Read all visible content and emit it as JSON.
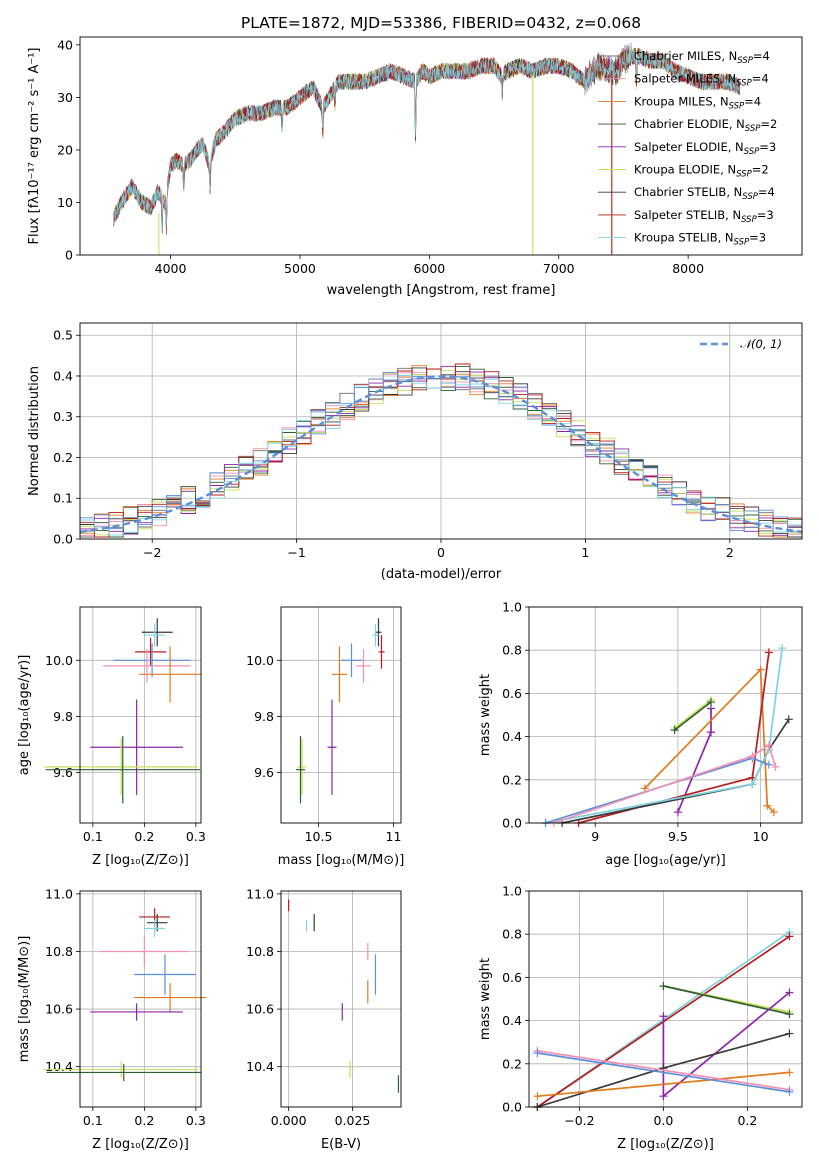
{
  "chart_data": [
    {
      "id": "spectrum",
      "type": "line",
      "title": "PLATE=1872, MJD=53386, FIBERID=0432, z=0.068",
      "xlabel": "wavelength [Angstrom, rest frame]",
      "ylabel": "Flux [fλ10⁻¹⁷ erg cm⁻² s⁻¹ A⁻¹]",
      "xlim": [
        3300,
        8880
      ],
      "ylim": [
        0,
        41.5
      ],
      "xticks": [
        4000,
        5000,
        6000,
        7000,
        8000
      ],
      "yticks": [
        0,
        10,
        20,
        30,
        40
      ],
      "grid": false,
      "legend_position": "right",
      "spectrum_profile": {
        "x": [
          3560,
          3620,
          3700,
          3780,
          3850,
          3900,
          3960,
          4000,
          4050,
          4100,
          4150,
          4200,
          4250,
          4300,
          4350,
          4400,
          4500,
          4600,
          4700,
          4800,
          4900,
          5000,
          5100,
          5175,
          5250,
          5300,
          5400,
          5500,
          5600,
          5700,
          5800,
          5890,
          5950,
          6000,
          6100,
          6200,
          6300,
          6400,
          6500,
          6560,
          6600,
          6700,
          6800,
          6900,
          7000,
          7100,
          7200,
          7300,
          7400,
          7450,
          7500,
          7600,
          7700,
          7800,
          7900,
          8000,
          8100,
          8200,
          8300,
          8400
        ],
        "y": [
          7,
          10,
          13,
          10,
          9,
          12,
          10,
          17,
          18,
          17,
          18,
          20,
          21,
          17,
          22,
          23,
          26,
          27,
          27,
          28,
          28,
          30,
          32,
          28,
          31,
          33,
          33,
          33,
          34,
          35,
          34,
          33,
          35,
          34,
          35,
          35,
          35,
          36,
          36,
          34,
          35,
          36,
          35,
          36,
          36,
          35,
          33,
          36,
          35,
          35,
          37,
          38,
          37,
          37,
          35,
          34,
          33,
          33,
          33,
          32
        ]
      },
      "series": [
        {
          "name": "Chabrier MILES, NSSP=4",
          "color": "#6b6b6b"
        },
        {
          "name": "Salpeter MILES, NSSP=4",
          "color": "#f48fb1"
        },
        {
          "name": "Kroupa MILES, NSSP=4",
          "color": "#e07b1f"
        },
        {
          "name": "Chabrier ELODIE, NSSP=2",
          "color": "#2e5f34"
        },
        {
          "name": "Salpeter ELODIE, NSSP=3",
          "color": "#8e24aa"
        },
        {
          "name": "Kroupa ELODIE, NSSP=2",
          "color": "#c6e05a"
        },
        {
          "name": "Chabrier STELIB, NSSP=4",
          "color": "#3a3a3a"
        },
        {
          "name": "Salpeter STELIB, NSSP=3",
          "color": "#b71c1c"
        },
        {
          "name": "Kroupa STELIB, NSSP=3",
          "color": "#7fd3e0"
        }
      ],
      "legend": [
        {
          "base": "Chabrier MILES, N",
          "sub": "SSP",
          "post": "=4",
          "color": "#6b6b6b"
        },
        {
          "base": "Salpeter MILES, N",
          "sub": "SSP",
          "post": "=4",
          "color": "#f48fb1"
        },
        {
          "base": "Kroupa MILES, N",
          "sub": "SSP",
          "post": "=4",
          "color": "#e07b1f"
        },
        {
          "base": "Chabrier ELODIE, N",
          "sub": "SSP",
          "post": "=2",
          "color": "#2e5f34"
        },
        {
          "base": "Salpeter ELODIE, N",
          "sub": "SSP",
          "post": "=3",
          "color": "#8e24aa"
        },
        {
          "base": "Kroupa ELODIE, N",
          "sub": "SSP",
          "post": "=2",
          "color": "#c6e05a"
        },
        {
          "base": "Chabrier STELIB, N",
          "sub": "SSP",
          "post": "=4",
          "color": "#3a3a3a"
        },
        {
          "base": "Salpeter STELIB, N",
          "sub": "SSP",
          "post": "=3",
          "color": "#b71c1c"
        },
        {
          "base": "Kroupa STELIB, N",
          "sub": "SSP",
          "post": "=3",
          "color": "#7fd3e0"
        }
      ]
    },
    {
      "id": "residuals",
      "type": "histogram",
      "xlabel": "(data-model)/error",
      "ylabel": "Normed distribution",
      "xlim": [
        -2.5,
        2.5
      ],
      "ylim": [
        0,
        0.53
      ],
      "xticks": [
        -2,
        -1,
        0,
        1,
        2
      ],
      "yticks": [
        0.0,
        0.1,
        0.2,
        0.3,
        0.4,
        0.5
      ],
      "grid": true,
      "bin_width": 0.1,
      "reference_curve": {
        "name": "𝒩(0, 1)",
        "label_base": "𝒩(0, 1)",
        "color": "#5b8fd9",
        "style": "dashed"
      }
    },
    {
      "id": "age_vs_Z",
      "type": "scatter",
      "xlabel": "Z [log₁₀(Z/Z⊙)]",
      "ylabel": "age  [log₁₀(age/yr)]",
      "xlim": [
        0.075,
        0.31
      ],
      "ylim": [
        9.42,
        10.19
      ],
      "xticks": [
        0.1,
        0.2,
        0.3
      ],
      "yticks": [
        9.6,
        9.8,
        10.0
      ],
      "grid": true,
      "points": [
        {
          "x": 0.225,
          "y": 10.1,
          "xerr": 0.03,
          "yerr": 0.05,
          "color": "#3a3a3a"
        },
        {
          "x": 0.22,
          "y": 10.09,
          "xerr": 0.02,
          "yerr": 0.04,
          "color": "#7fd3e0"
        },
        {
          "x": 0.212,
          "y": 10.03,
          "xerr": 0.03,
          "yerr": 0.05,
          "color": "#b71c1c"
        },
        {
          "x": 0.215,
          "y": 10.0,
          "xerr": 0.075,
          "yerr": 0.06,
          "color": "#5b8fd9"
        },
        {
          "x": 0.205,
          "y": 9.98,
          "xerr": 0.085,
          "yerr": 0.06,
          "color": "#f48fb1"
        },
        {
          "x": 0.25,
          "y": 9.95,
          "xerr": 0.06,
          "yerr": 0.1,
          "color": "#e07b1f"
        },
        {
          "x": 0.185,
          "y": 9.69,
          "xerr": 0.09,
          "yerr": 0.17,
          "color": "#8e24aa"
        },
        {
          "x": 0.155,
          "y": 9.62,
          "xerr": 0.15,
          "yerr": 0.1,
          "color": "#c6e05a"
        },
        {
          "x": 0.158,
          "y": 9.61,
          "xerr": 0.15,
          "yerr": 0.12,
          "color": "#2e5f34"
        }
      ]
    },
    {
      "id": "age_vs_mass",
      "type": "scatter",
      "xlabel": "mass [log₁₀(M/M⊙)]",
      "xlim": [
        10.25,
        11.05
      ],
      "ylim": [
        9.42,
        10.19
      ],
      "xticks": [
        10.5,
        11.0
      ],
      "yticks": [
        9.6,
        9.8,
        10.0
      ],
      "grid": true,
      "points": [
        {
          "x": 10.9,
          "y": 10.1,
          "xerr": 0.02,
          "yerr": 0.05,
          "color": "#3a3a3a"
        },
        {
          "x": 10.88,
          "y": 10.09,
          "xerr": 0.02,
          "yerr": 0.04,
          "color": "#7fd3e0"
        },
        {
          "x": 10.92,
          "y": 10.03,
          "xerr": 0.02,
          "yerr": 0.06,
          "color": "#b71c1c"
        },
        {
          "x": 10.72,
          "y": 10.0,
          "xerr": 0.07,
          "yerr": 0.06,
          "color": "#5b8fd9"
        },
        {
          "x": 10.8,
          "y": 9.98,
          "xerr": 0.05,
          "yerr": 0.06,
          "color": "#f48fb1"
        },
        {
          "x": 10.64,
          "y": 9.95,
          "xerr": 0.05,
          "yerr": 0.1,
          "color": "#e07b1f"
        },
        {
          "x": 10.59,
          "y": 9.69,
          "xerr": 0.03,
          "yerr": 0.17,
          "color": "#8e24aa"
        },
        {
          "x": 10.39,
          "y": 9.62,
          "xerr": 0.03,
          "yerr": 0.1,
          "color": "#c6e05a"
        },
        {
          "x": 10.38,
          "y": 9.61,
          "xerr": 0.03,
          "yerr": 0.12,
          "color": "#2e5f34"
        }
      ]
    },
    {
      "id": "weight_vs_age",
      "type": "line",
      "xlabel": "age  [log₁₀(age/yr)]",
      "ylabel": "mass weight",
      "xlim": [
        8.6,
        10.25
      ],
      "ylim": [
        0,
        1.0
      ],
      "xticks": [
        9.0,
        9.5,
        10.0
      ],
      "yticks": [
        0.0,
        0.2,
        0.4,
        0.6,
        0.8,
        1.0
      ],
      "grid": true,
      "series": [
        {
          "color": "#8e24aa",
          "x": [
            9.5,
            9.7,
            9.7
          ],
          "y": [
            0.05,
            0.42,
            0.53
          ]
        },
        {
          "color": "#c6e05a",
          "x": [
            9.48,
            9.7
          ],
          "y": [
            0.44,
            0.57
          ]
        },
        {
          "color": "#2e5f34",
          "x": [
            9.48,
            9.7
          ],
          "y": [
            0.43,
            0.56
          ]
        },
        {
          "color": "#e07b1f",
          "x": [
            9.3,
            10.0,
            10.04,
            10.08
          ],
          "y": [
            0.16,
            0.71,
            0.08,
            0.05
          ]
        },
        {
          "color": "#b71c1c",
          "x": [
            8.9,
            9.95,
            10.05
          ],
          "y": [
            0.0,
            0.21,
            0.79
          ]
        },
        {
          "color": "#3a3a3a",
          "x": [
            8.8,
            9.95,
            10.05,
            10.17
          ],
          "y": [
            0.0,
            0.18,
            0.34,
            0.48
          ]
        },
        {
          "color": "#7fd3e0",
          "x": [
            8.7,
            9.95,
            10.05,
            10.13
          ],
          "y": [
            0.0,
            0.18,
            0.34,
            0.81
          ]
        },
        {
          "color": "#5b8fd9",
          "x": [
            8.7,
            9.95,
            10.05
          ],
          "y": [
            0.0,
            0.3,
            0.27
          ]
        },
        {
          "color": "#f48fb1",
          "x": [
            8.75,
            9.95,
            10.05,
            10.09
          ],
          "y": [
            0.0,
            0.31,
            0.36,
            0.26
          ]
        }
      ]
    },
    {
      "id": "mass_vs_Z",
      "type": "scatter",
      "xlabel": "Z [log₁₀(Z/Z⊙)]",
      "ylabel": "mass [log₁₀(M/M⊙)]",
      "xlim": [
        0.075,
        0.31
      ],
      "ylim": [
        10.26,
        11.01
      ],
      "xticks": [
        0.1,
        0.2,
        0.3
      ],
      "yticks": [
        10.4,
        10.6,
        10.8,
        11.0
      ],
      "grid": true,
      "points": [
        {
          "x": 0.22,
          "y": 10.92,
          "xerr": 0.03,
          "yerr": 0.03,
          "color": "#b71c1c"
        },
        {
          "x": 0.225,
          "y": 10.9,
          "xerr": 0.02,
          "yerr": 0.03,
          "color": "#3a3a3a"
        },
        {
          "x": 0.22,
          "y": 10.88,
          "xerr": 0.02,
          "yerr": 0.03,
          "color": "#7fd3e0"
        },
        {
          "x": 0.2,
          "y": 10.8,
          "xerr": 0.085,
          "yerr": 0.05,
          "color": "#f48fb1"
        },
        {
          "x": 0.24,
          "y": 10.72,
          "xerr": 0.06,
          "yerr": 0.07,
          "color": "#5b8fd9"
        },
        {
          "x": 0.25,
          "y": 10.64,
          "xerr": 0.07,
          "yerr": 0.05,
          "color": "#e07b1f"
        },
        {
          "x": 0.185,
          "y": 10.59,
          "xerr": 0.09,
          "yerr": 0.03,
          "color": "#8e24aa"
        },
        {
          "x": 0.155,
          "y": 10.39,
          "xerr": 0.15,
          "yerr": 0.03,
          "color": "#c6e05a"
        },
        {
          "x": 0.16,
          "y": 10.38,
          "xerr": 0.15,
          "yerr": 0.03,
          "color": "#2e5f34"
        }
      ]
    },
    {
      "id": "mass_vs_ebv",
      "type": "scatter",
      "xlabel": "E(B-V)",
      "xlim": [
        -0.003,
        0.044
      ],
      "ylim": [
        10.26,
        11.01
      ],
      "xticks": [
        0.0,
        0.025
      ],
      "xtick_labels": [
        "0.000",
        "0.025"
      ],
      "yticks": [
        10.4,
        10.6,
        10.8,
        11.0
      ],
      "grid": true,
      "points": [
        {
          "x": 0.0,
          "y": 10.96,
          "yerr": 0.02,
          "color": "#b71c1c"
        },
        {
          "x": 0.01,
          "y": 10.9,
          "yerr": 0.03,
          "color": "#3a3a3a"
        },
        {
          "x": 0.007,
          "y": 10.89,
          "yerr": 0.02,
          "color": "#7fd3e0"
        },
        {
          "x": 0.031,
          "y": 10.8,
          "yerr": 0.03,
          "color": "#f48fb1"
        },
        {
          "x": 0.034,
          "y": 10.72,
          "yerr": 0.07,
          "color": "#5b8fd9"
        },
        {
          "x": 0.031,
          "y": 10.66,
          "yerr": 0.04,
          "color": "#e07b1f"
        },
        {
          "x": 0.021,
          "y": 10.59,
          "yerr": 0.03,
          "color": "#8e24aa"
        },
        {
          "x": 0.024,
          "y": 10.39,
          "yerr": 0.03,
          "color": "#c6e05a"
        },
        {
          "x": 0.043,
          "y": 10.34,
          "yerr": 0.03,
          "color": "#2e5f34"
        }
      ]
    },
    {
      "id": "weight_vs_Z",
      "type": "line",
      "xlabel": "Z [log₁₀(Z/Z⊙)]",
      "ylabel": "mass weight",
      "xlim": [
        -0.32,
        0.33
      ],
      "ylim": [
        0,
        1.0
      ],
      "xticks": [
        -0.2,
        0.0,
        0.2
      ],
      "xtick_labels": [
        "−0.2",
        "0.0",
        "0.2"
      ],
      "yticks": [
        0.0,
        0.2,
        0.4,
        0.6,
        0.8,
        1.0
      ],
      "grid": true,
      "series": [
        {
          "color": "#7fd3e0",
          "x": [
            -0.3,
            0.3
          ],
          "y": [
            0.0,
            0.81
          ]
        },
        {
          "color": "#b71c1c",
          "x": [
            -0.3,
            0.3
          ],
          "y": [
            0.0,
            0.79
          ]
        },
        {
          "color": "#c6e05a",
          "x": [
            0.0,
            0.3
          ],
          "y": [
            0.56,
            0.44
          ]
        },
        {
          "color": "#2e5f34",
          "x": [
            0.0,
            0.3
          ],
          "y": [
            0.56,
            0.43
          ]
        },
        {
          "color": "#8e24aa",
          "x": [
            0.0,
            0.0,
            0.3
          ],
          "y": [
            0.42,
            0.05,
            0.53
          ]
        },
        {
          "color": "#3a3a3a",
          "x": [
            -0.3,
            0.0,
            0.3
          ],
          "y": [
            0.0,
            0.18,
            0.34
          ]
        },
        {
          "color": "#e07b1f",
          "x": [
            -0.3,
            0.3
          ],
          "y": [
            0.05,
            0.16
          ]
        },
        {
          "color": "#f48fb1",
          "x": [
            -0.3,
            0.3
          ],
          "y": [
            0.26,
            0.08
          ]
        },
        {
          "color": "#5b8fd9",
          "x": [
            -0.3,
            0.3
          ],
          "y": [
            0.25,
            0.07
          ]
        }
      ]
    }
  ]
}
